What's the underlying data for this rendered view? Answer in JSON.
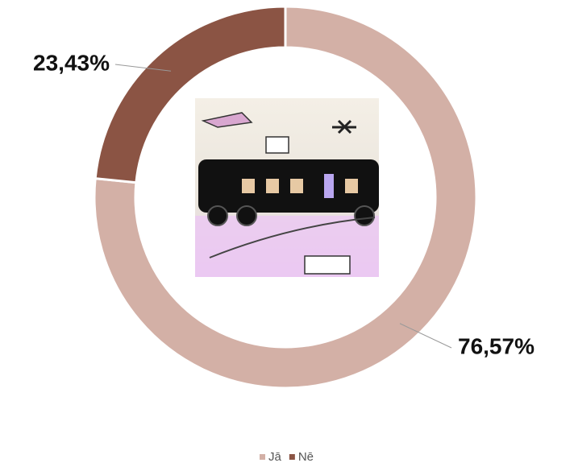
{
  "chart_data": {
    "type": "pie",
    "donut": true,
    "categories": [
      "Jā",
      "Nē"
    ],
    "values": [
      76.57,
      23.43
    ],
    "value_labels": [
      "76,57%",
      "23,43%"
    ],
    "colors": [
      "#d3b0a6",
      "#8b5444"
    ],
    "legend": "bottom"
  }
}
